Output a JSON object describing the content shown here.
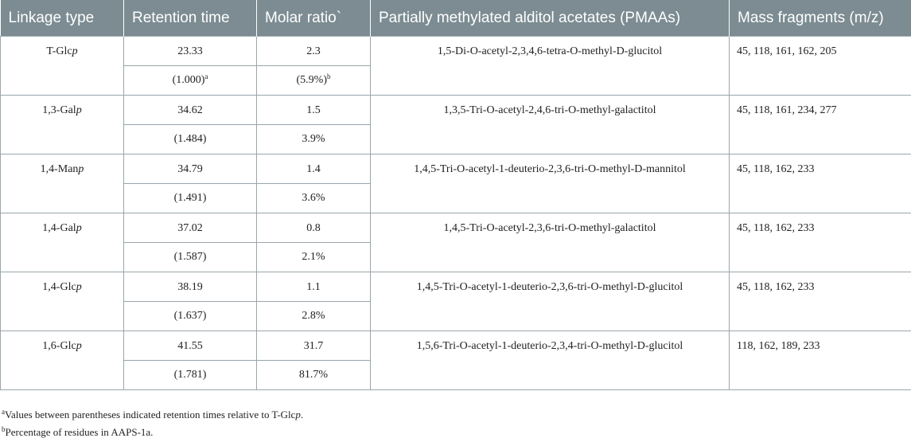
{
  "headers": [
    "Linkage type",
    "Retention time",
    "Molar ratio`",
    "Partially methylated alditol acetates (PMAAs)",
    "Mass fragments (m/z)"
  ],
  "rows": [
    {
      "linkage_prefix": "T-Glc",
      "linkage_suffix": "p",
      "rt": "23.33",
      "ratio": "2.3",
      "rel_rt": "(1.000)",
      "rel_rt_sup": "a",
      "pct": "(5.9%)",
      "pct_sup": "b",
      "pmaa": "1,5-Di-O-acetyl-2,3,4,6-tetra-O-methyl-D-glucitol",
      "mass": "45, 118, 161, 162, 205"
    },
    {
      "linkage_prefix": "1,3-Gal",
      "linkage_suffix": "p",
      "rt": "34.62",
      "ratio": "1.5",
      "rel_rt": "(1.484)",
      "rel_rt_sup": "",
      "pct": "3.9%",
      "pct_sup": "",
      "pmaa": "1,3,5-Tri-O-acetyl-2,4,6-tri-O-methyl-galactitol",
      "mass": "45, 118, 161, 234, 277"
    },
    {
      "linkage_prefix": "1,4-Man",
      "linkage_suffix": "p",
      "rt": "34.79",
      "ratio": "1.4",
      "rel_rt": "(1.491)",
      "rel_rt_sup": "",
      "pct": "3.6%",
      "pct_sup": "",
      "pmaa": "1,4,5-Tri-O-acetyl-1-deuterio-2,3,6-tri-O-methyl-D-mannitol",
      "mass": "45, 118, 162, 233"
    },
    {
      "linkage_prefix": "1,4-Gal",
      "linkage_suffix": "p",
      "rt": "37.02",
      "ratio": "0.8",
      "rel_rt": "(1.587)",
      "rel_rt_sup": "",
      "pct": "2.1%",
      "pct_sup": "",
      "pmaa": "1,4,5-Tri-O-acetyl-2,3,6-tri-O-methyl-galactitol",
      "mass": "45, 118, 162, 233"
    },
    {
      "linkage_prefix": "1,4-Glc",
      "linkage_suffix": "p",
      "rt": "38.19",
      "ratio": "1.1",
      "rel_rt": "(1.637)",
      "rel_rt_sup": "",
      "pct": "2.8%",
      "pct_sup": "",
      "pmaa": "1,4,5-Tri-O-acetyl-1-deuterio-2,3,6-tri-O-methyl-D-glucitol",
      "mass": "45, 118, 162, 233"
    },
    {
      "linkage_prefix": "1,6-Glc",
      "linkage_suffix": "p",
      "rt": "41.55",
      "ratio": "31.7",
      "rel_rt": "(1.781)",
      "rel_rt_sup": "",
      "pct": "81.7%",
      "pct_sup": "",
      "pmaa": "1,5,6-Tri-O-acetyl-1-deuterio-2,3,4-tri-O-methyl-D-glucitol",
      "mass": "118, 162, 189, 233"
    }
  ],
  "footnotes": [
    {
      "mark": "a",
      "text": "Values between parentheses indicated retention times relative to T-Glc",
      "tail": "p",
      "end": "."
    },
    {
      "mark": "b",
      "text": "Percentage of residues in AAPS-1a.",
      "tail": "",
      "end": ""
    }
  ]
}
